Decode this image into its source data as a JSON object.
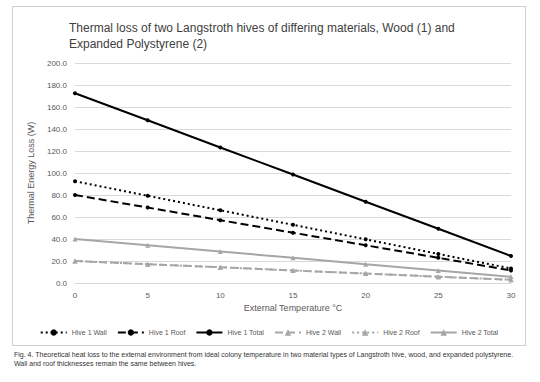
{
  "chart_data": {
    "type": "line",
    "title": "Thermal loss of two Langstroth hives of differing materials, Wood (1) and Expanded Polystyrene (2)",
    "x_label": "External Temperature °C",
    "y_label": "Thermal Energy Loss (W)",
    "categories": [
      "0",
      "5",
      "10",
      "15",
      "20",
      "25",
      "30"
    ],
    "ylim": [
      0,
      200
    ],
    "yticks": [
      {
        "value": 0,
        "label": "0.0"
      },
      {
        "value": 20,
        "label": "20.0"
      },
      {
        "value": 40,
        "label": "40.0"
      },
      {
        "value": 60,
        "label": "60.0"
      },
      {
        "value": 80,
        "label": "80.0"
      },
      {
        "value": 100,
        "label": "100.0"
      },
      {
        "value": 120,
        "label": "120.0"
      },
      {
        "value": 140,
        "label": "140.0"
      },
      {
        "value": 160,
        "label": "160.0"
      },
      {
        "value": 180,
        "label": "180.0"
      },
      {
        "value": 200,
        "label": "200.0"
      }
    ],
    "grid": true,
    "legend": "bottom",
    "series": [
      {
        "name": "Hive 1 Wall",
        "color": "#000000",
        "line_style": "dotted",
        "marker": "circle",
        "values": [
          92.5,
          79.3,
          66.1,
          52.9,
          39.7,
          26.4,
          13.2
        ]
      },
      {
        "name": "Hive 1 Roof",
        "color": "#000000",
        "line_style": "dashed",
        "marker": "circle",
        "values": [
          80.0,
          68.6,
          57.1,
          45.7,
          34.3,
          22.9,
          11.4
        ]
      },
      {
        "name": "Hive 1 Total",
        "color": "#000000",
        "line_style": "solid",
        "marker": "circle",
        "values": [
          172.5,
          147.9,
          123.2,
          98.6,
          73.9,
          49.3,
          24.6
        ]
      },
      {
        "name": "Hive 2 Wall",
        "color": "#a6a6a6",
        "line_style": "dashed",
        "marker": "triangle",
        "values": [
          20.0,
          17.1,
          14.3,
          11.4,
          8.6,
          5.7,
          2.9
        ]
      },
      {
        "name": "Hive 2 Roof",
        "color": "#a6a6a6",
        "line_style": "dotted",
        "marker": "triangle",
        "values": [
          20.0,
          17.1,
          14.3,
          11.4,
          8.6,
          5.7,
          2.9
        ]
      },
      {
        "name": "Hive 2 Total",
        "color": "#a6a6a6",
        "line_style": "solid",
        "marker": "triangle",
        "values": [
          40.0,
          34.3,
          28.6,
          22.9,
          17.1,
          11.4,
          5.7
        ]
      }
    ]
  },
  "caption": "Fig. 4. Theoretical heat loss to the external environment from ideal colony temperature in two material types of Langstroth hive, wood, and expanded polystyrene. Wall and roof thicknesses remain the same between hives."
}
